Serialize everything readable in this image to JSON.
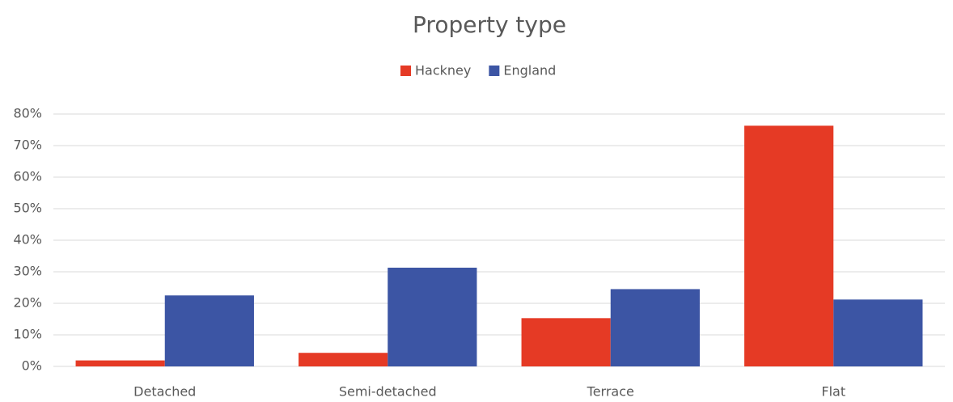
{
  "chart_data": {
    "type": "bar",
    "title": "Property type",
    "categories": [
      "Detached",
      "Semi-detached",
      "Terrace",
      "Flat"
    ],
    "series": [
      {
        "name": "Hackney",
        "color": "#e53a25",
        "values": [
          1.9,
          4.3,
          15.3,
          76.3
        ]
      },
      {
        "name": "England",
        "color": "#3c55a4",
        "values": [
          22.5,
          31.3,
          24.5,
          21.2
        ]
      }
    ],
    "ylim": [
      0,
      80
    ],
    "yticks": [
      {
        "value": 0,
        "label": "0%"
      },
      {
        "value": 10,
        "label": "10%"
      },
      {
        "value": 20,
        "label": "20%"
      },
      {
        "value": 30,
        "label": "30%"
      },
      {
        "value": 40,
        "label": "40%"
      },
      {
        "value": 50,
        "label": "50%"
      },
      {
        "value": 60,
        "label": "60%"
      },
      {
        "value": 70,
        "label": "70%"
      },
      {
        "value": 80,
        "label": "80%"
      }
    ],
    "grid": true,
    "legend": "top"
  }
}
